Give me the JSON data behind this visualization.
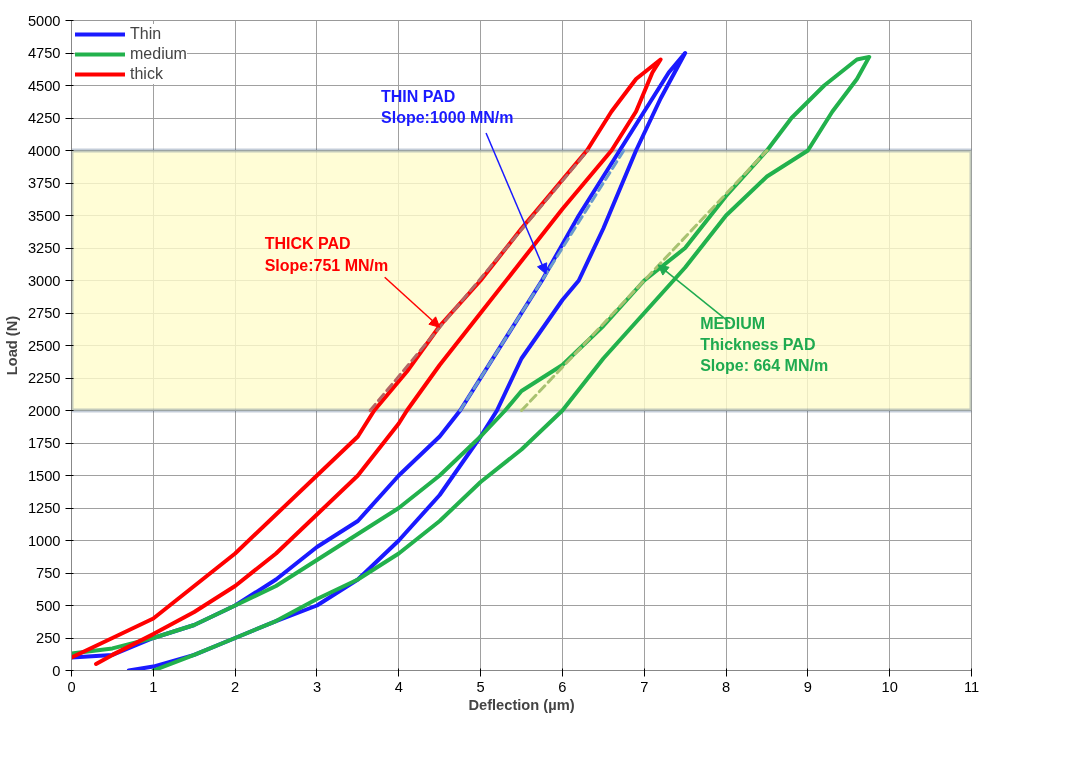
{
  "chart_data": {
    "type": "line",
    "xlabel": "Deflection (µm)",
    "ylabel": "Load (N)",
    "xlim": [
      0,
      11
    ],
    "xticks": [
      0,
      1,
      2,
      3,
      4,
      5,
      6,
      7,
      8,
      9,
      10,
      11
    ],
    "ylim": [
      0,
      5000
    ],
    "yticks": [
      0,
      250,
      500,
      750,
      1000,
      1250,
      1500,
      1750,
      2000,
      2250,
      2500,
      2750,
      3000,
      3250,
      3500,
      3750,
      4000,
      4250,
      4500,
      4750,
      5000
    ],
    "grid": true,
    "legend": "top left",
    "marker": "none",
    "line_style": "solid",
    "bands": [
      {
        "axis": "y",
        "from": 2000,
        "to": 4000,
        "color": "#fffccc"
      }
    ],
    "series": [
      {
        "name": "Thin",
        "color": "#1a1aff",
        "x": [
          0.7,
          1,
          1.5,
          2,
          2.5,
          3,
          3.5,
          4,
          4.5,
          5,
          5.2,
          5.5,
          6,
          6.2,
          6.5,
          6.9,
          7.2,
          7.5,
          7.3,
          7.0,
          6.7,
          6.2,
          5.75,
          5.25,
          4.75,
          4.5,
          4,
          3.5,
          3,
          2.5,
          2,
          1.5,
          1,
          0.5,
          0
        ],
        "values": [
          0,
          30,
          120,
          250,
          380,
          500,
          700,
          1000,
          1350,
          1800,
          2000,
          2400,
          2850,
          3000,
          3400,
          4000,
          4400,
          4750,
          4600,
          4300,
          4000,
          3500,
          3000,
          2500,
          2000,
          1800,
          1500,
          1150,
          950,
          700,
          500,
          350,
          250,
          120,
          100
        ]
      },
      {
        "name": "medium",
        "color": "#22b14c",
        "x": [
          1,
          1.5,
          2,
          2.5,
          3,
          3.5,
          4,
          4.5,
          5,
          5.5,
          6,
          6.5,
          7,
          7.5,
          8,
          8.5,
          9,
          9.3,
          9.6,
          9.75,
          9.6,
          9.2,
          8.8,
          8.5,
          8,
          7.5,
          7.2,
          7,
          6.5,
          6,
          5.5,
          5.3,
          5,
          4.5,
          4,
          3.5,
          3,
          2.5,
          2,
          1.5,
          1,
          0.5,
          0
        ],
        "values": [
          0,
          120,
          250,
          380,
          550,
          700,
          900,
          1150,
          1450,
          1700,
          2000,
          2400,
          2750,
          3100,
          3500,
          3800,
          4000,
          4300,
          4550,
          4720,
          4700,
          4500,
          4250,
          4000,
          3650,
          3250,
          3100,
          3000,
          2650,
          2350,
          2150,
          2000,
          1800,
          1500,
          1250,
          1050,
          850,
          650,
          500,
          350,
          250,
          170,
          130
        ]
      },
      {
        "name": "thick",
        "color": "#ff0000",
        "x": [
          0.3,
          0.5,
          1,
          1.5,
          2,
          2.5,
          3,
          3.5,
          4,
          4.1,
          4.5,
          5,
          5.5,
          6,
          6.6,
          6.9,
          7.1,
          7.2,
          6.9,
          6.6,
          6.3,
          5.9,
          5.5,
          5,
          4.5,
          4.1,
          3.7,
          3.5,
          3,
          2.5,
          2,
          1.5,
          1,
          0.5,
          0
        ],
        "values": [
          50,
          120,
          280,
          450,
          650,
          900,
          1200,
          1500,
          1900,
          2000,
          2350,
          2750,
          3150,
          3550,
          4000,
          4300,
          4600,
          4700,
          4550,
          4300,
          4000,
          3700,
          3400,
          3000,
          2650,
          2300,
          2000,
          1800,
          1500,
          1200,
          900,
          650,
          400,
          250,
          100
        ]
      },
      {
        "type": "line",
        "line_style": "dashed",
        "color": "#6a9acd",
        "x": [
          4.75,
          6.75
        ],
        "values": [
          2000,
          4000
        ]
      },
      {
        "type": "line",
        "line_style": "dashed",
        "color": "#b36666",
        "x": [
          3.65,
          6.31
        ],
        "values": [
          2000,
          4000
        ]
      },
      {
        "type": "line",
        "line_style": "dashed",
        "color": "#a9c271",
        "x": [
          5.5,
          8.5
        ],
        "values": [
          2000,
          4000
        ]
      }
    ],
    "annotations": [
      {
        "text": "THIN PAD\nSlope:1000 MN/m",
        "x": 5.8,
        "y": 3050
      },
      {
        "text": "THICK PAD\nSlope:751 MN/m",
        "x": 4.5,
        "y": 2640
      },
      {
        "text": "MEDIUM\nThickness PAD\nSlope: 664 MN/m",
        "x": 7.17,
        "y": 3120
      }
    ]
  }
}
